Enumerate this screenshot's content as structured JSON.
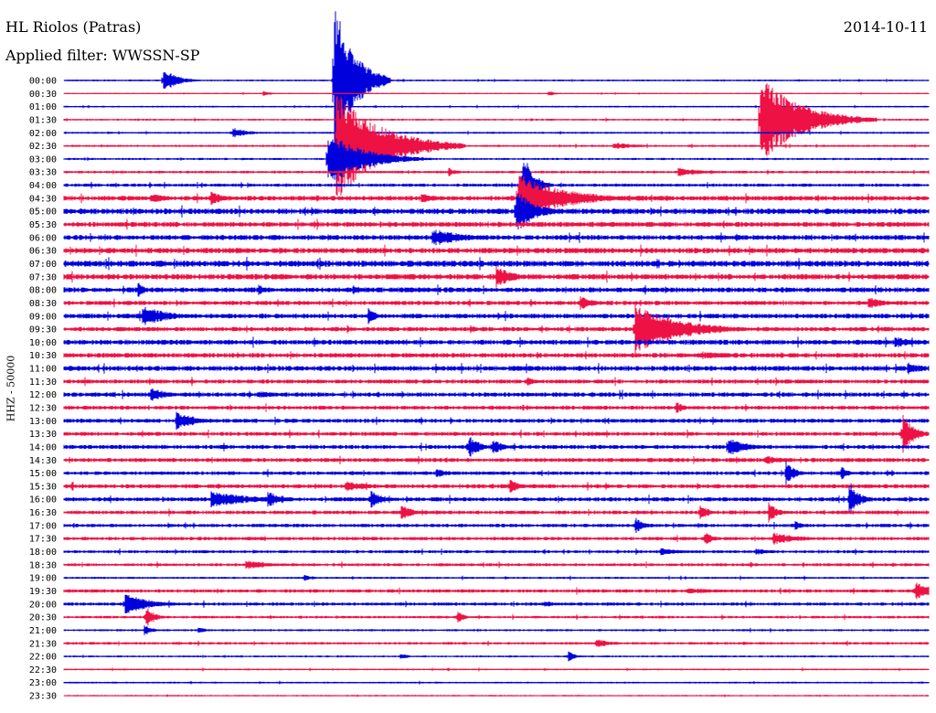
{
  "header": {
    "station": "HL Riolos (Patras)",
    "filter": "Applied filter: WWSSN-SP",
    "date": "2014-10-11",
    "channel": "HHZ - 50000"
  },
  "colors": {
    "line_a": "#0000dd",
    "line_b": "#ee1144",
    "background": "#ffffff"
  },
  "chart_data": {
    "type": "line",
    "title": "HL Riolos (Patras)",
    "subtitle": "Applied filter: WWSSN-SP",
    "date": "2014-10-11",
    "ylabel": "HHZ - 50000",
    "xlabel": "",
    "rows": [
      "00:00",
      "00:30",
      "01:00",
      "01:30",
      "02:00",
      "02:30",
      "03:00",
      "03:30",
      "04:00",
      "04:30",
      "05:00",
      "05:30",
      "06:00",
      "06:30",
      "07:00",
      "07:30",
      "08:00",
      "08:30",
      "09:00",
      "09:30",
      "10:00",
      "10:30",
      "11:00",
      "11:30",
      "12:00",
      "12:30",
      "13:00",
      "13:30",
      "14:00",
      "14:30",
      "15:00",
      "15:30",
      "16:00",
      "16:30",
      "17:00",
      "17:30",
      "18:00",
      "18:30",
      "19:00",
      "19:30",
      "20:00",
      "20:30",
      "21:00",
      "21:30",
      "22:00",
      "22:30",
      "23:00",
      "23:30"
    ],
    "noise_level": [
      0.8,
      0.6,
      0.8,
      0.9,
      0.9,
      1.0,
      1.0,
      1.2,
      1.5,
      2.2,
      2.6,
      2.3,
      2.3,
      2.5,
      2.8,
      2.5,
      2.3,
      2.0,
      2.2,
      2.0,
      2.3,
      2.2,
      2.3,
      1.9,
      2.0,
      1.8,
      1.9,
      1.8,
      1.9,
      1.9,
      1.7,
      1.9,
      1.9,
      1.7,
      1.6,
      1.6,
      1.4,
      1.4,
      1.0,
      1.6,
      1.5,
      1.2,
      1.0,
      1.2,
      0.9,
      0.8,
      0.8,
      0.7
    ],
    "events": [
      {
        "row": 0,
        "t": 0.115,
        "amp": 14,
        "dur": 0.015
      },
      {
        "row": 0,
        "t": 0.312,
        "amp": 90,
        "dur": 0.022
      },
      {
        "row": 1,
        "t": 0.23,
        "amp": 3,
        "dur": 0.01
      },
      {
        "row": 1,
        "t": 0.56,
        "amp": 3,
        "dur": 0.01
      },
      {
        "row": 3,
        "t": 0.805,
        "amp": 48,
        "dur": 0.045
      },
      {
        "row": 4,
        "t": 0.195,
        "amp": 6,
        "dur": 0.02
      },
      {
        "row": 5,
        "t": 0.315,
        "amp": 60,
        "dur": 0.05
      },
      {
        "row": 5,
        "t": 0.635,
        "amp": 4,
        "dur": 0.03
      },
      {
        "row": 6,
        "t": 0.305,
        "amp": 30,
        "dur": 0.04
      },
      {
        "row": 7,
        "t": 0.445,
        "amp": 5,
        "dur": 0.01
      },
      {
        "row": 7,
        "t": 0.71,
        "amp": 5,
        "dur": 0.03
      },
      {
        "row": 8,
        "t": 0.53,
        "amp": 40,
        "dur": 0.012
      },
      {
        "row": 9,
        "t": 0.1,
        "amp": 6,
        "dur": 0.02
      },
      {
        "row": 9,
        "t": 0.17,
        "amp": 8,
        "dur": 0.015
      },
      {
        "row": 9,
        "t": 0.413,
        "amp": 6,
        "dur": 0.02
      },
      {
        "row": 9,
        "t": 0.525,
        "amp": 28,
        "dur": 0.05
      },
      {
        "row": 10,
        "t": 0.523,
        "amp": 25,
        "dur": 0.02
      },
      {
        "row": 12,
        "t": 0.425,
        "amp": 10,
        "dur": 0.04
      },
      {
        "row": 15,
        "t": 0.5,
        "amp": 12,
        "dur": 0.02
      },
      {
        "row": 16,
        "t": 0.085,
        "amp": 9,
        "dur": 0.01
      },
      {
        "row": 16,
        "t": 0.225,
        "amp": 6,
        "dur": 0.01
      },
      {
        "row": 16,
        "t": 0.335,
        "amp": 6,
        "dur": 0.01
      },
      {
        "row": 17,
        "t": 0.597,
        "amp": 8,
        "dur": 0.015
      },
      {
        "row": 17,
        "t": 0.93,
        "amp": 7,
        "dur": 0.02
      },
      {
        "row": 18,
        "t": 0.09,
        "amp": 12,
        "dur": 0.03
      },
      {
        "row": 18,
        "t": 0.352,
        "amp": 10,
        "dur": 0.008
      },
      {
        "row": 19,
        "t": 0.66,
        "amp": 28,
        "dur": 0.05
      },
      {
        "row": 19,
        "t": 0.47,
        "amp": 5,
        "dur": 0.01
      },
      {
        "row": 20,
        "t": 0.96,
        "amp": 7,
        "dur": 0.02
      },
      {
        "row": 21,
        "t": 0.74,
        "amp": 4,
        "dur": 0.04
      },
      {
        "row": 22,
        "t": 0.975,
        "amp": 7,
        "dur": 0.02
      },
      {
        "row": 23,
        "t": 0.535,
        "amp": 6,
        "dur": 0.01
      },
      {
        "row": 24,
        "t": 0.1,
        "amp": 8,
        "dur": 0.02
      },
      {
        "row": 24,
        "t": 0.225,
        "amp": 4,
        "dur": 0.03
      },
      {
        "row": 25,
        "t": 0.708,
        "amp": 7,
        "dur": 0.01
      },
      {
        "row": 26,
        "t": 0.13,
        "amp": 11,
        "dur": 0.02
      },
      {
        "row": 27,
        "t": 0.97,
        "amp": 25,
        "dur": 0.012
      },
      {
        "row": 28,
        "t": 0.468,
        "amp": 14,
        "dur": 0.012
      },
      {
        "row": 28,
        "t": 0.495,
        "amp": 10,
        "dur": 0.012
      },
      {
        "row": 28,
        "t": 0.768,
        "amp": 12,
        "dur": 0.02
      },
      {
        "row": 29,
        "t": 0.81,
        "amp": 5,
        "dur": 0.03
      },
      {
        "row": 30,
        "t": 0.835,
        "amp": 14,
        "dur": 0.01
      },
      {
        "row": 30,
        "t": 0.898,
        "amp": 8,
        "dur": 0.01
      },
      {
        "row": 30,
        "t": 0.43,
        "amp": 5,
        "dur": 0.02
      },
      {
        "row": 31,
        "t": 0.325,
        "amp": 6,
        "dur": 0.03
      },
      {
        "row": 31,
        "t": 0.515,
        "amp": 9,
        "dur": 0.012
      },
      {
        "row": 32,
        "t": 0.17,
        "amp": 9,
        "dur": 0.05
      },
      {
        "row": 32,
        "t": 0.235,
        "amp": 10,
        "dur": 0.015
      },
      {
        "row": 32,
        "t": 0.355,
        "amp": 10,
        "dur": 0.015
      },
      {
        "row": 32,
        "t": 0.908,
        "amp": 22,
        "dur": 0.01
      },
      {
        "row": 33,
        "t": 0.39,
        "amp": 9,
        "dur": 0.015
      },
      {
        "row": 33,
        "t": 0.735,
        "amp": 10,
        "dur": 0.01
      },
      {
        "row": 33,
        "t": 0.815,
        "amp": 12,
        "dur": 0.01
      },
      {
        "row": 34,
        "t": 0.66,
        "amp": 10,
        "dur": 0.01
      },
      {
        "row": 34,
        "t": 0.845,
        "amp": 6,
        "dur": 0.01
      },
      {
        "row": 35,
        "t": 0.74,
        "amp": 9,
        "dur": 0.01
      },
      {
        "row": 35,
        "t": 0.82,
        "amp": 7,
        "dur": 0.03
      },
      {
        "row": 36,
        "t": 0.69,
        "amp": 4,
        "dur": 0.03
      },
      {
        "row": 36,
        "t": 0.8,
        "amp": 4,
        "dur": 0.02
      },
      {
        "row": 37,
        "t": 0.21,
        "amp": 5,
        "dur": 0.03
      },
      {
        "row": 38,
        "t": 0.277,
        "amp": 5,
        "dur": 0.01
      },
      {
        "row": 39,
        "t": 0.72,
        "amp": 3,
        "dur": 0.06
      },
      {
        "row": 39,
        "t": 0.985,
        "amp": 10,
        "dur": 0.02
      },
      {
        "row": 40,
        "t": 0.07,
        "amp": 12,
        "dur": 0.03
      },
      {
        "row": 40,
        "t": 0.555,
        "amp": 4,
        "dur": 0.015
      },
      {
        "row": 41,
        "t": 0.095,
        "amp": 12,
        "dur": 0.01
      },
      {
        "row": 41,
        "t": 0.455,
        "amp": 10,
        "dur": 0.006
      },
      {
        "row": 42,
        "t": 0.093,
        "amp": 6,
        "dur": 0.01
      },
      {
        "row": 42,
        "t": 0.155,
        "amp": 4,
        "dur": 0.01
      },
      {
        "row": 43,
        "t": 0.615,
        "amp": 5,
        "dur": 0.02
      },
      {
        "row": 44,
        "t": 0.388,
        "amp": 4,
        "dur": 0.01
      },
      {
        "row": 44,
        "t": 0.583,
        "amp": 6,
        "dur": 0.008
      }
    ]
  }
}
